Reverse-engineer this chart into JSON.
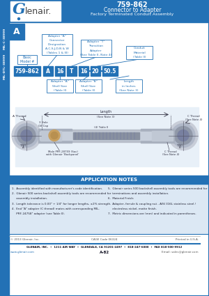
{
  "title_number": "759-862",
  "title_main": "Connector to Adapter",
  "title_sub": "Factory Terminated Conduit Assembly",
  "header_bg": "#2371b5",
  "header_text_color": "#ffffff",
  "sidebar_bg": "#2371b5",
  "sidebar_text": "MIL-DTL-38999",
  "tab_text": "A",
  "part_number_boxes": [
    "759-862",
    "A",
    "16",
    "T",
    "16",
    "20",
    "50.5"
  ],
  "app_notes_title": "APPLICATION NOTES",
  "app_notes_bg": "#2371b5",
  "footer_copyright": "© 2013 Glenair, Inc.",
  "footer_cage": "CAGE Code 06324",
  "footer_printed": "Printed in U.S.A.",
  "footer_address": "GLENAIR, INC.  •  1211 AIR WAY  •  GLENDALE, CA 91201-2497  •  818-247-6000  •  FAX 818-500-9912",
  "footer_website": "www.glenair.com",
  "footer_page": "A-82",
  "footer_email": "Email: sales@glenair.com",
  "bg_color": "#ffffff",
  "blue": "#2371b5",
  "light_blue": "#d6e8f7",
  "label_text_color": "#2371b5",
  "notes_col1": [
    "1.  Assembly identified with manufacturer's code identification.",
    "2.  Glenair 500 series backshell assembly tools are recommended for",
    "     assembly installation.",
    "3.  Length tolerance is 0.00\" + 1/4\" for longer lengths, ±2% strength.",
    "4.  End \"A\" adapter (C thread) mates with corresponding MIL-",
    "     PRF-24758\" adapter (see Table II)."
  ],
  "notes_col2": [
    "5.  Glenair series 500 backshell assembly tools are recommended for",
    "     terminations and assembly installation.",
    "6.  Material Finish:",
    "     Adapter, ferrule & coupling nut - AISI 316L stainless steel /",
    "     electroless nickel, matte finish.",
    "7.  Metric dimensions are (mm) and indicated in parentheses."
  ]
}
